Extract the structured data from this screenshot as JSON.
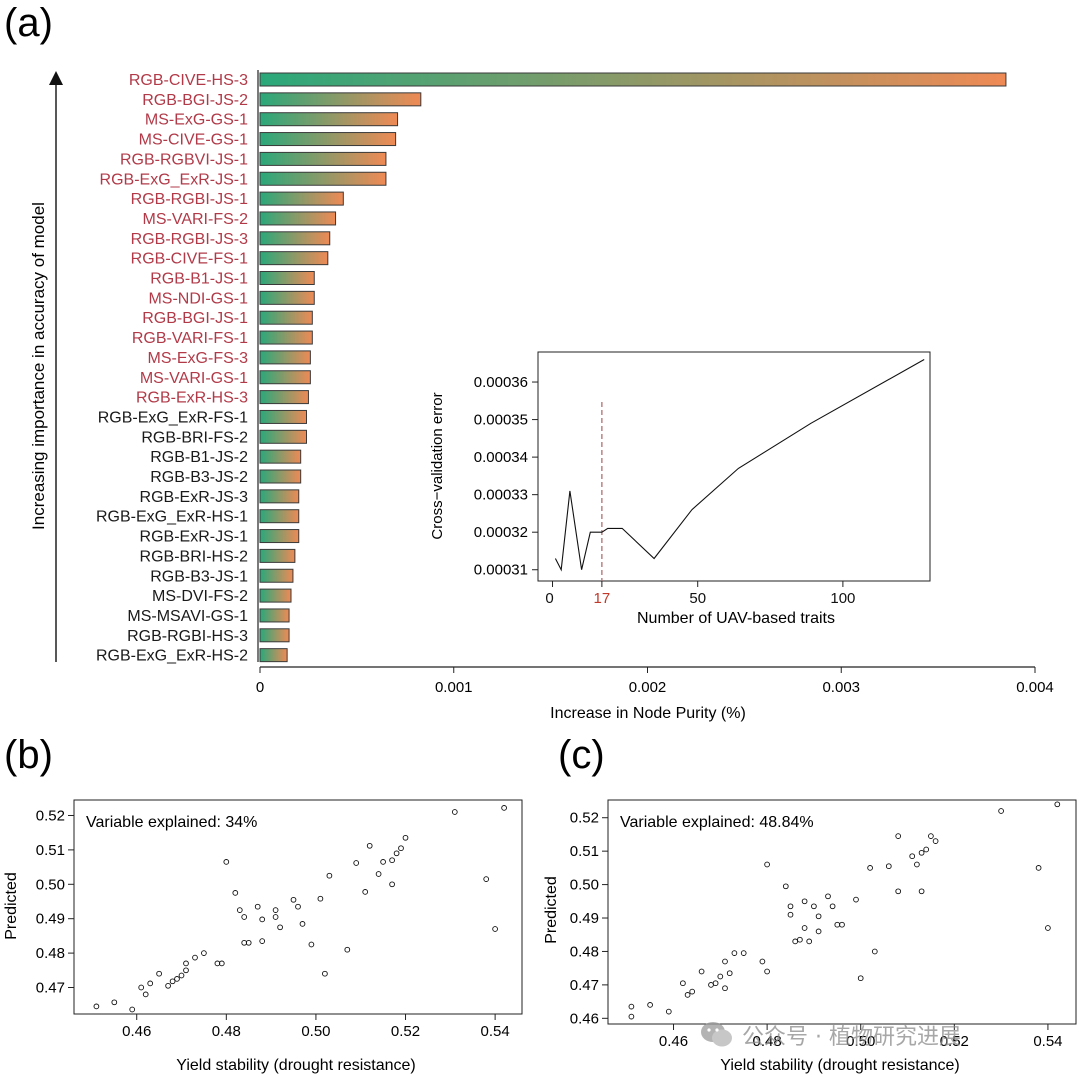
{
  "panel_labels": [
    "(a)",
    "(b)",
    "(c)"
  ],
  "watermark": "公众号 · 植物研究进展",
  "colors": {
    "bar_start": "#2aa87a",
    "bar_end": "#ef8a55",
    "highlight_label": "#b23a48",
    "normal_label": "#1a1a1a",
    "dashed_line": "#b07070",
    "red_tick": "#c0392b"
  },
  "chart_data": [
    {
      "type": "bar",
      "orientation": "horizontal",
      "xlabel": "Increase in Node Purity (%)",
      "ylabel": "Increasing importance in accuracy of model",
      "xlim": [
        0,
        0.004
      ],
      "xticks": [
        "0",
        "0.001",
        "0.002",
        "0.003",
        "0.004"
      ],
      "categories": [
        "RGB-CIVE-HS-3",
        "RGB-BGI-JS-2",
        "MS-ExG-GS-1",
        "MS-CIVE-GS-1",
        "RGB-RGBVI-JS-1",
        "RGB-ExG_ExR-JS-1",
        "RGB-RGBI-JS-1",
        "MS-VARI-FS-2",
        "RGB-RGBI-JS-3",
        "RGB-CIVE-FS-1",
        "RGB-B1-JS-1",
        "MS-NDI-GS-1",
        "RGB-BGI-JS-1",
        "RGB-VARI-FS-1",
        "MS-ExG-FS-3",
        "MS-VARI-GS-1",
        "RGB-ExR-HS-3",
        "RGB-ExG_ExR-FS-1",
        "RGB-BRI-FS-2",
        "RGB-B1-JS-2",
        "RGB-B3-JS-2",
        "RGB-ExR-JS-3",
        "RGB-ExG_ExR-HS-1",
        "RGB-ExR-JS-1",
        "RGB-BRI-HS-2",
        "RGB-B3-JS-1",
        "MS-DVI-FS-2",
        "MS-MSAVI-GS-1",
        "RGB-RGBI-HS-3",
        "RGB-ExG_ExR-HS-2"
      ],
      "values": [
        0.00385,
        0.00083,
        0.00071,
        0.0007,
        0.00065,
        0.00065,
        0.00043,
        0.00039,
        0.00036,
        0.00035,
        0.00028,
        0.00028,
        0.00027,
        0.00027,
        0.00026,
        0.00026,
        0.00025,
        0.00024,
        0.00024,
        0.00021,
        0.00021,
        0.0002,
        0.0002,
        0.0002,
        0.00018,
        0.00017,
        0.00016,
        0.00015,
        0.00015,
        0.00014
      ],
      "highlighted_count": 17
    },
    {
      "type": "line",
      "xlabel": "Number of UAV-based traits",
      "ylabel": "Cross−validation error",
      "xlim": [
        -5,
        130
      ],
      "ylim": [
        0.000307,
        0.000368
      ],
      "xticks": [
        "0",
        "17",
        "50",
        "100"
      ],
      "yticks": [
        "0.00031",
        "0.00032",
        "0.00033",
        "0.00034",
        "0.00035",
        "0.00036"
      ],
      "marker_x": 17,
      "x": [
        1,
        3,
        6,
        10,
        13,
        17,
        19,
        24,
        35,
        48,
        64,
        89,
        128
      ],
      "y": [
        0.000313,
        0.00031,
        0.000331,
        0.00031,
        0.00032,
        0.00032,
        0.000321,
        0.000321,
        0.000313,
        0.000326,
        0.000337,
        0.000349,
        0.000366
      ]
    },
    {
      "type": "scatter",
      "annotation": "Variable explained: 34%",
      "xlabel": "Yield stability (drought resistance)",
      "ylabel": "Predicted",
      "xlim": [
        0.446,
        0.546
      ],
      "ylim": [
        0.4623,
        0.5245
      ],
      "xticks": [
        "0.46",
        "0.48",
        "0.50",
        "0.52",
        "0.54"
      ],
      "yticks": [
        "0.47",
        "0.48",
        "0.49",
        "0.50",
        "0.51",
        "0.52"
      ],
      "points": [
        [
          0.451,
          0.4645
        ],
        [
          0.455,
          0.4657
        ],
        [
          0.459,
          0.4636
        ],
        [
          0.461,
          0.47
        ],
        [
          0.462,
          0.468
        ],
        [
          0.463,
          0.4712
        ],
        [
          0.465,
          0.474
        ],
        [
          0.467,
          0.4705
        ],
        [
          0.468,
          0.4718
        ],
        [
          0.469,
          0.4725
        ],
        [
          0.47,
          0.4735
        ],
        [
          0.471,
          0.475
        ],
        [
          0.471,
          0.477
        ],
        [
          0.473,
          0.4787
        ],
        [
          0.475,
          0.48
        ],
        [
          0.478,
          0.477
        ],
        [
          0.479,
          0.477
        ],
        [
          0.48,
          0.5065
        ],
        [
          0.482,
          0.4975
        ],
        [
          0.483,
          0.4925
        ],
        [
          0.484,
          0.4905
        ],
        [
          0.484,
          0.483
        ],
        [
          0.485,
          0.483
        ],
        [
          0.487,
          0.4935
        ],
        [
          0.488,
          0.4835
        ],
        [
          0.488,
          0.4898
        ],
        [
          0.491,
          0.4925
        ],
        [
          0.491,
          0.4905
        ],
        [
          0.492,
          0.4875
        ],
        [
          0.495,
          0.4955
        ],
        [
          0.496,
          0.4935
        ],
        [
          0.497,
          0.4885
        ],
        [
          0.499,
          0.4825
        ],
        [
          0.501,
          0.4958
        ],
        [
          0.503,
          0.5025
        ],
        [
          0.502,
          0.474
        ],
        [
          0.507,
          0.481
        ],
        [
          0.509,
          0.5062
        ],
        [
          0.511,
          0.4978
        ],
        [
          0.512,
          0.5112
        ],
        [
          0.514,
          0.503
        ],
        [
          0.515,
          0.5065
        ],
        [
          0.517,
          0.5
        ],
        [
          0.517,
          0.507
        ],
        [
          0.518,
          0.509
        ],
        [
          0.519,
          0.5105
        ],
        [
          0.52,
          0.5135
        ],
        [
          0.531,
          0.521
        ],
        [
          0.538,
          0.5015
        ],
        [
          0.54,
          0.487
        ],
        [
          0.542,
          0.5222
        ]
      ]
    },
    {
      "type": "scatter",
      "annotation": "Variable explained: 48.84%",
      "xlabel": "Yield stability (drought resistance)",
      "ylabel": "Predicted",
      "xlim": [
        0.446,
        0.546
      ],
      "ylim": [
        0.4583,
        0.5253
      ],
      "xticks": [
        "0.46",
        "0.48",
        "0.50",
        "0.52",
        "0.54"
      ],
      "yticks": [
        "0.46",
        "0.47",
        "0.48",
        "0.49",
        "0.50",
        "0.51",
        "0.52"
      ],
      "points": [
        [
          0.451,
          0.4605
        ],
        [
          0.451,
          0.4635
        ],
        [
          0.455,
          0.464
        ],
        [
          0.459,
          0.462
        ],
        [
          0.462,
          0.4705
        ],
        [
          0.463,
          0.467
        ],
        [
          0.464,
          0.468
        ],
        [
          0.466,
          0.474
        ],
        [
          0.468,
          0.47
        ],
        [
          0.469,
          0.4705
        ],
        [
          0.47,
          0.4725
        ],
        [
          0.471,
          0.469
        ],
        [
          0.471,
          0.477
        ],
        [
          0.472,
          0.4735
        ],
        [
          0.473,
          0.4795
        ],
        [
          0.475,
          0.4795
        ],
        [
          0.479,
          0.477
        ],
        [
          0.48,
          0.474
        ],
        [
          0.48,
          0.506
        ],
        [
          0.484,
          0.4995
        ],
        [
          0.485,
          0.491
        ],
        [
          0.485,
          0.4935
        ],
        [
          0.486,
          0.483
        ],
        [
          0.487,
          0.4835
        ],
        [
          0.488,
          0.487
        ],
        [
          0.488,
          0.495
        ],
        [
          0.489,
          0.483
        ],
        [
          0.49,
          0.4935
        ],
        [
          0.491,
          0.4905
        ],
        [
          0.491,
          0.486
        ],
        [
          0.493,
          0.4965
        ],
        [
          0.494,
          0.4935
        ],
        [
          0.495,
          0.488
        ],
        [
          0.496,
          0.488
        ],
        [
          0.499,
          0.4955
        ],
        [
          0.5,
          0.472
        ],
        [
          0.502,
          0.505
        ],
        [
          0.503,
          0.48
        ],
        [
          0.506,
          0.5055
        ],
        [
          0.508,
          0.498
        ],
        [
          0.508,
          0.5145
        ],
        [
          0.511,
          0.5085
        ],
        [
          0.512,
          0.506
        ],
        [
          0.513,
          0.498
        ],
        [
          0.513,
          0.5095
        ],
        [
          0.514,
          0.5105
        ],
        [
          0.515,
          0.5145
        ],
        [
          0.516,
          0.513
        ],
        [
          0.53,
          0.522
        ],
        [
          0.538,
          0.505
        ],
        [
          0.54,
          0.487
        ],
        [
          0.542,
          0.524
        ]
      ]
    }
  ]
}
